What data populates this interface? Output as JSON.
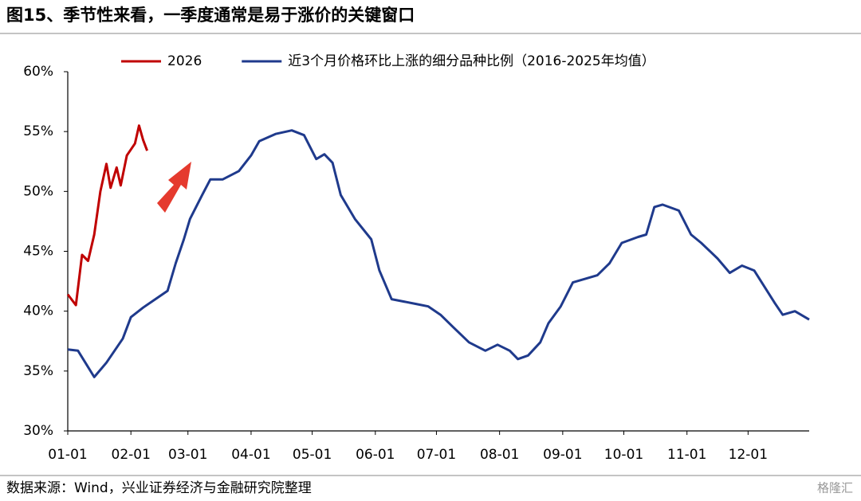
{
  "chart_data": {
    "type": "line",
    "title": "图15、季节性来看，一季度通常是易于涨价的关键窗口",
    "source": "数据来源：Wind，兴业证券经济与金融研究院整理",
    "logo": "格隆汇",
    "xlim": [
      "01-01",
      "12-31"
    ],
    "xticks": [
      "01-01",
      "02-01",
      "03-01",
      "04-01",
      "05-01",
      "06-01",
      "07-01",
      "08-01",
      "09-01",
      "10-01",
      "11-01",
      "12-01"
    ],
    "ylim": [
      30,
      60
    ],
    "yticks": [
      {
        "value": 30,
        "label": "30%"
      },
      {
        "value": 35,
        "label": "35%"
      },
      {
        "value": 40,
        "label": "40%"
      },
      {
        "value": 45,
        "label": "45%"
      },
      {
        "value": 50,
        "label": "50%"
      },
      {
        "value": 55,
        "label": "55%"
      },
      {
        "value": 60,
        "label": "60%"
      }
    ],
    "grid": false,
    "legend": "top",
    "series": [
      {
        "name": "2026",
        "color": "#c00000",
        "x": [
          "01-01",
          "01-05",
          "01-08",
          "01-11",
          "01-14",
          "01-17",
          "01-20",
          "01-22",
          "01-25",
          "01-27",
          "01-30",
          "02-03",
          "02-05",
          "02-07",
          "02-09"
        ],
        "values": [
          41.4,
          40.5,
          44.7,
          44.2,
          46.4,
          50.0,
          52.3,
          50.3,
          52.0,
          50.5,
          53.0,
          54.0,
          55.5,
          54.3,
          53.4
        ]
      },
      {
        "name": "近3个月价格环比上涨的细分品种比例（2016-2025年均值）",
        "color": "#1f3a8c",
        "x": [
          "01-01",
          "01-06",
          "01-10",
          "01-14",
          "01-20",
          "01-28",
          "02-01",
          "02-07",
          "02-13",
          "02-19",
          "02-23",
          "02-27",
          "03-02",
          "03-08",
          "03-12",
          "03-18",
          "03-26",
          "04-01",
          "04-05",
          "04-13",
          "04-21",
          "04-27",
          "05-03",
          "05-07",
          "05-11",
          "05-15",
          "05-22",
          "05-30",
          "06-03",
          "06-09",
          "06-15",
          "06-21",
          "06-27",
          "07-03",
          "07-09",
          "07-17",
          "07-25",
          "07-31",
          "08-06",
          "08-10",
          "08-15",
          "08-21",
          "08-25",
          "08-31",
          "09-06",
          "09-12",
          "09-18",
          "09-24",
          "09-30",
          "10-08",
          "10-12",
          "10-16",
          "10-20",
          "10-28",
          "11-03",
          "11-08",
          "11-16",
          "11-22",
          "11-28",
          "12-04",
          "12-14",
          "12-18",
          "12-24",
          "12-31"
        ],
        "values": [
          36.8,
          36.7,
          35.6,
          34.5,
          35.7,
          37.7,
          39.5,
          40.3,
          41.0,
          41.7,
          44.0,
          46.0,
          47.7,
          49.7,
          51.0,
          51.0,
          51.7,
          53.0,
          54.2,
          54.8,
          55.1,
          54.7,
          52.7,
          53.1,
          52.4,
          49.7,
          47.7,
          46.0,
          43.4,
          41.0,
          40.8,
          40.6,
          40.4,
          39.7,
          38.7,
          37.4,
          36.7,
          37.2,
          36.7,
          36.0,
          36.3,
          37.4,
          39.0,
          40.4,
          42.4,
          42.7,
          43.0,
          44.0,
          45.7,
          46.2,
          46.4,
          48.7,
          48.9,
          48.4,
          46.4,
          45.7,
          44.4,
          43.2,
          43.8,
          43.4,
          40.7,
          39.7,
          40.0,
          39.3
        ]
      }
    ]
  }
}
